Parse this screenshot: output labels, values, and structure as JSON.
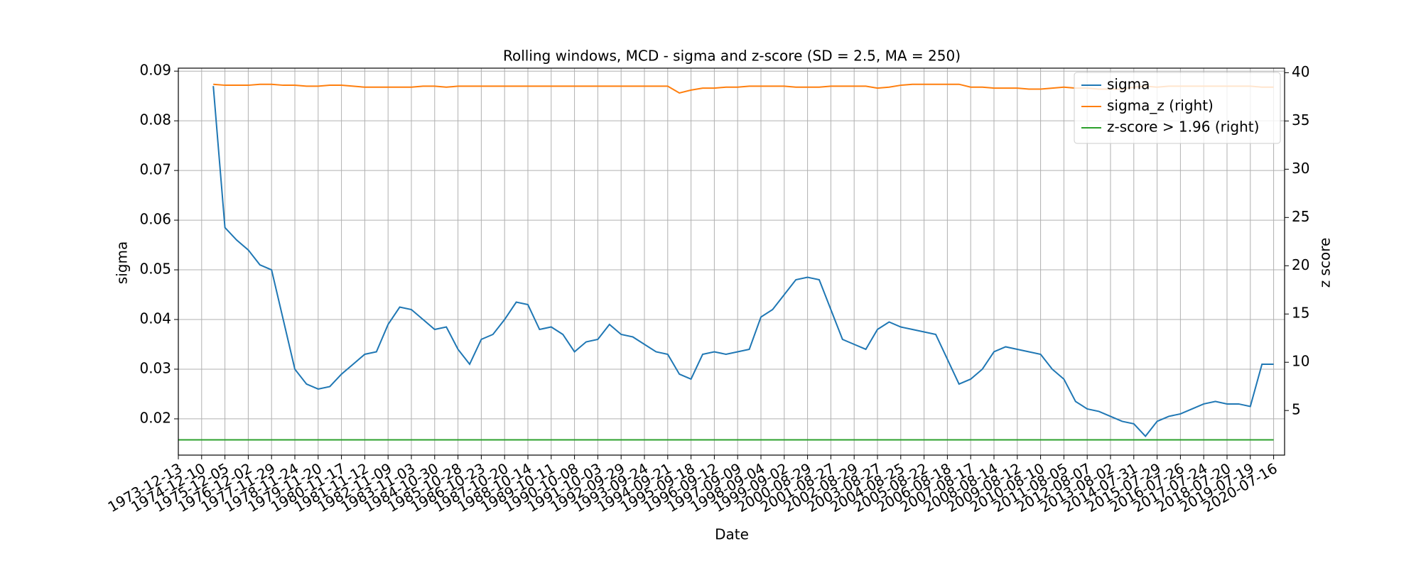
{
  "chart_data": {
    "type": "line",
    "title": "Rolling windows, MCD - sigma and z-score (SD = 2.5, MA = 250)",
    "x_label": "Date",
    "y_label": "sigma",
    "y2_label": "z score",
    "categories": [
      "1973-12-13",
      null,
      "1974-12-10",
      null,
      "1975-12-05",
      null,
      "1976-12-02",
      null,
      "1977-11-29",
      null,
      "1978-11-24",
      null,
      "1979-11-20",
      null,
      "1980-11-17",
      null,
      "1981-11-12",
      null,
      "1982-11-09",
      null,
      "1983-11-03",
      null,
      "1984-10-30",
      null,
      "1985-10-28",
      null,
      "1986-10-23",
      null,
      "1987-10-20",
      null,
      "1988-10-14",
      null,
      "1989-10-11",
      null,
      "1990-10-08",
      null,
      "1991-10-03",
      null,
      "1992-09-29",
      null,
      "1993-09-24",
      null,
      "1994-09-21",
      null,
      "1995-09-18",
      null,
      "1996-09-12",
      null,
      "1997-09-09",
      null,
      "1998-09-04",
      null,
      "1999-09-02",
      null,
      "2000-08-29",
      null,
      "2001-08-27",
      null,
      "2002-08-29",
      null,
      "2003-08-27",
      null,
      "2004-08-25",
      null,
      "2005-08-22",
      null,
      "2006-08-18",
      null,
      "2007-08-17",
      null,
      "2008-08-14",
      null,
      "2009-08-12",
      null,
      "2010-08-10",
      null,
      "2011-08-05",
      null,
      "2012-08-07",
      null,
      "2013-08-02",
      null,
      "2014-07-31",
      null,
      "2015-07-29",
      null,
      "2016-07-26",
      null,
      "2017-07-24",
      null,
      "2018-07-20",
      null,
      "2019-07-19",
      null,
      "2020-07-16"
    ],
    "series": [
      {
        "name": "sigma",
        "color": "#1f77b4",
        "axis": "y",
        "values": [
          null,
          null,
          null,
          0.087,
          0.0585,
          0.056,
          0.054,
          0.051,
          0.05,
          0.04,
          0.03,
          0.027,
          0.026,
          0.0265,
          0.029,
          0.031,
          0.033,
          0.0335,
          0.039,
          0.0425,
          0.042,
          0.04,
          0.038,
          0.0385,
          0.034,
          0.031,
          0.036,
          0.037,
          0.04,
          0.0435,
          0.043,
          0.038,
          0.0385,
          0.037,
          0.0335,
          0.0355,
          0.036,
          0.039,
          0.037,
          0.0365,
          0.035,
          0.0335,
          0.033,
          0.029,
          0.028,
          0.033,
          0.0335,
          0.033,
          0.0335,
          0.034,
          0.0405,
          0.042,
          0.045,
          0.048,
          0.0485,
          0.048,
          0.042,
          0.036,
          0.035,
          0.034,
          0.038,
          0.0395,
          0.0385,
          0.038,
          0.0375,
          0.037,
          0.032,
          0.027,
          0.028,
          0.03,
          0.0335,
          0.0345,
          0.034,
          0.0335,
          0.033,
          0.03,
          0.028,
          0.0235,
          0.022,
          0.0215,
          0.0205,
          0.0195,
          0.019,
          0.0165,
          0.0195,
          0.0205,
          0.021,
          0.022,
          0.023,
          0.0235,
          0.023,
          0.023,
          0.0225,
          0.031,
          0.031
        ]
      },
      {
        "name": "sigma_z (right)",
        "color": "#ff7f0e",
        "axis": "y2",
        "values": [
          null,
          null,
          null,
          38.8,
          38.7,
          38.7,
          38.7,
          38.8,
          38.8,
          38.7,
          38.7,
          38.6,
          38.6,
          38.7,
          38.7,
          38.6,
          38.5,
          38.5,
          38.5,
          38.5,
          38.5,
          38.6,
          38.6,
          38.5,
          38.6,
          38.6,
          38.6,
          38.6,
          38.6,
          38.6,
          38.6,
          38.6,
          38.6,
          38.6,
          38.6,
          38.6,
          38.6,
          38.6,
          38.6,
          38.6,
          38.6,
          38.6,
          38.6,
          37.9,
          38.2,
          38.4,
          38.4,
          38.5,
          38.5,
          38.6,
          38.6,
          38.6,
          38.6,
          38.5,
          38.5,
          38.5,
          38.6,
          38.6,
          38.6,
          38.6,
          38.4,
          38.5,
          38.7,
          38.8,
          38.8,
          38.8,
          38.8,
          38.8,
          38.5,
          38.5,
          38.4,
          38.4,
          38.4,
          38.3,
          38.3,
          38.4,
          38.5,
          38.4,
          38.4,
          38.3,
          38.3,
          38.3,
          38.5,
          38.6,
          38.5,
          38.6,
          38.6,
          38.6,
          38.6,
          38.6,
          38.6,
          38.6,
          38.6,
          38.5,
          38.5
        ]
      },
      {
        "name": "z-score > 1.96 (right)",
        "color": "#2ca02c",
        "axis": "y2",
        "values": [
          1.96,
          1.96,
          1.96,
          1.96,
          1.96,
          1.96,
          1.96,
          1.96,
          1.96,
          1.96,
          1.96,
          1.96,
          1.96,
          1.96,
          1.96,
          1.96,
          1.96,
          1.96,
          1.96,
          1.96,
          1.96,
          1.96,
          1.96,
          1.96,
          1.96,
          1.96,
          1.96,
          1.96,
          1.96,
          1.96,
          1.96,
          1.96,
          1.96,
          1.96,
          1.96,
          1.96,
          1.96,
          1.96,
          1.96,
          1.96,
          1.96,
          1.96,
          1.96,
          1.96,
          1.96,
          1.96,
          1.96,
          1.96,
          1.96,
          1.96,
          1.96,
          1.96,
          1.96,
          1.96,
          1.96,
          1.96,
          1.96,
          1.96,
          1.96,
          1.96,
          1.96,
          1.96,
          1.96,
          1.96,
          1.96,
          1.96,
          1.96,
          1.96,
          1.96,
          1.96,
          1.96,
          1.96,
          1.96,
          1.96,
          1.96,
          1.96,
          1.96,
          1.96,
          1.96,
          1.96,
          1.96,
          1.96,
          1.96,
          1.96,
          1.96,
          1.96,
          1.96,
          1.96,
          1.96,
          1.96,
          1.96,
          1.96,
          1.96,
          1.96,
          1.96
        ]
      }
    ],
    "ylim": [
      0.0127,
      0.0906
    ],
    "yticks": [
      0.02,
      0.03,
      0.04,
      0.05,
      0.06,
      0.07,
      0.08,
      0.09
    ],
    "y2lim": [
      0.38,
      40.47
    ],
    "y2ticks": [
      5,
      10,
      15,
      20,
      25,
      30,
      35,
      40
    ],
    "grid": true,
    "legend": "upper right"
  }
}
